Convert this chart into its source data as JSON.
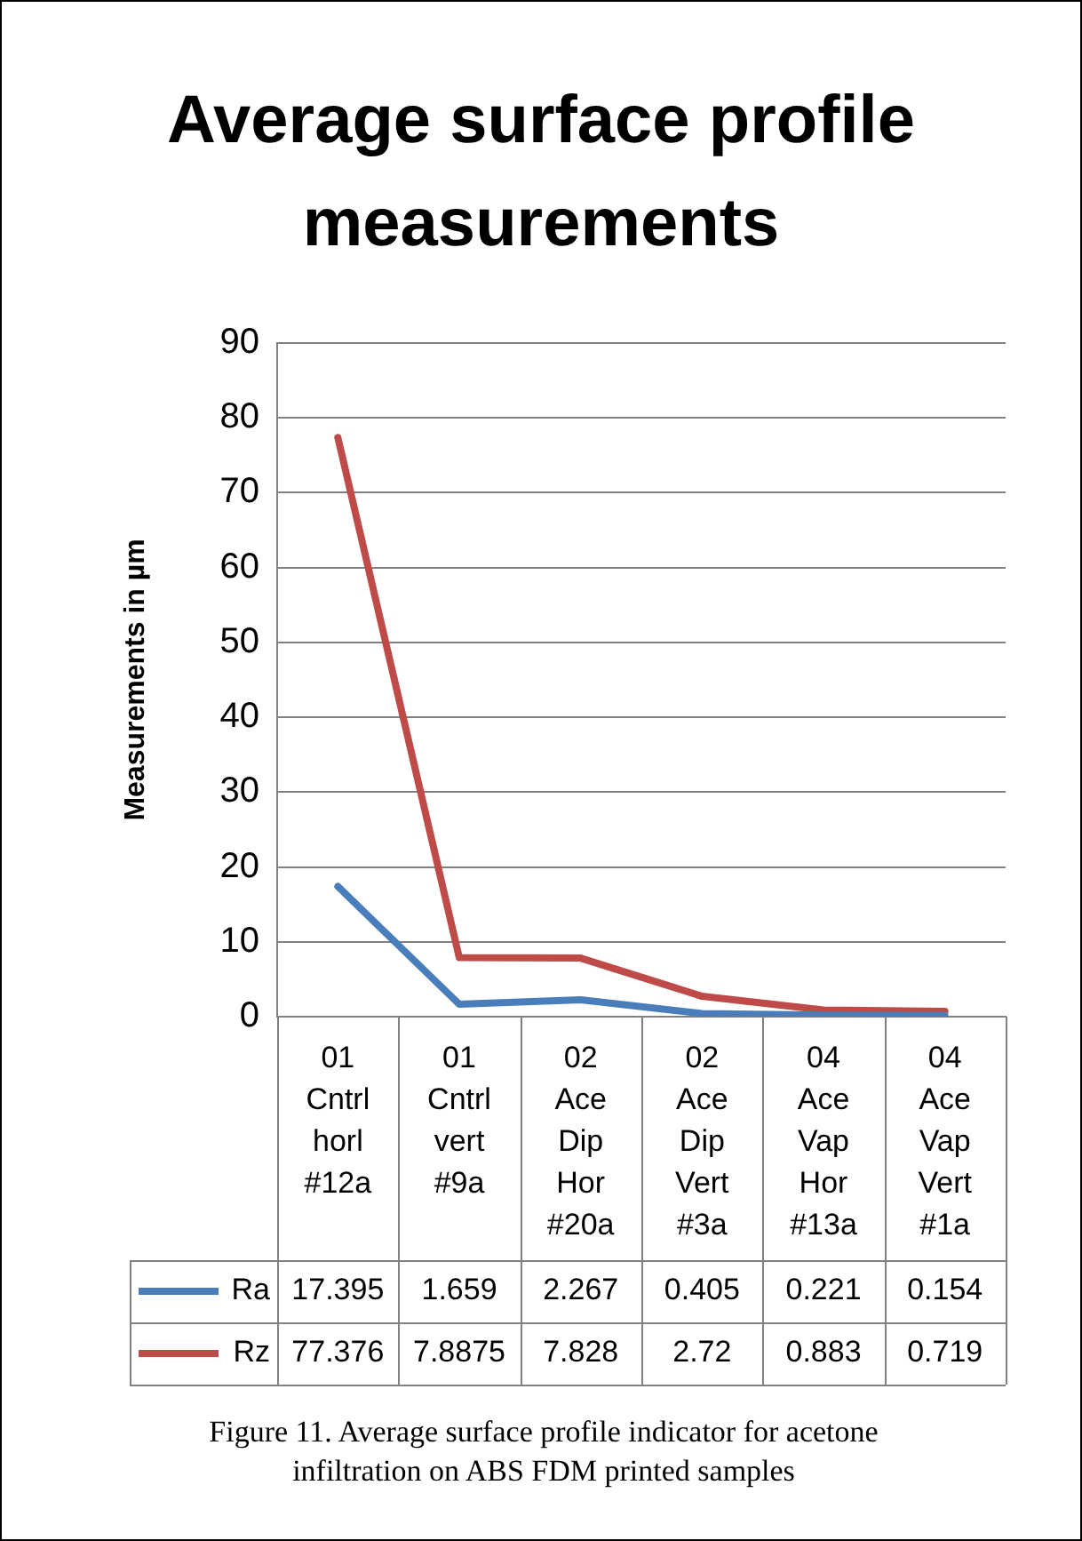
{
  "chart_data": {
    "type": "line",
    "title": "Average surface profile measurements",
    "ylabel": "Measurements in µm",
    "categories": [
      "01 Cntrl horl #12a",
      "01 Cntrl vert #9a",
      "02 Ace Dip Hor #20a",
      "02 Ace Dip Vert #3a",
      "04 Ace Vap Hor #13a",
      "04 Ace Vap Vert #1a"
    ],
    "series": [
      {
        "name": "Ra",
        "color": "#4a7ebb",
        "values": [
          17.395,
          1.659,
          2.267,
          0.405,
          0.221,
          0.154
        ]
      },
      {
        "name": "Rz",
        "color": "#be4b48",
        "values": [
          77.376,
          7.8875,
          7.828,
          2.72,
          0.883,
          0.719
        ]
      }
    ],
    "ylim": [
      0,
      90
    ],
    "yticks": [
      0,
      10,
      20,
      30,
      40,
      50,
      60,
      70,
      80,
      90
    ],
    "grid": "y",
    "legend": "bottom",
    "data_labels": true,
    "marker": "none",
    "annotations": [
      "Figure 11. Average surface profile indicator for acetone infiltration on ABS FDM printed samples"
    ]
  }
}
